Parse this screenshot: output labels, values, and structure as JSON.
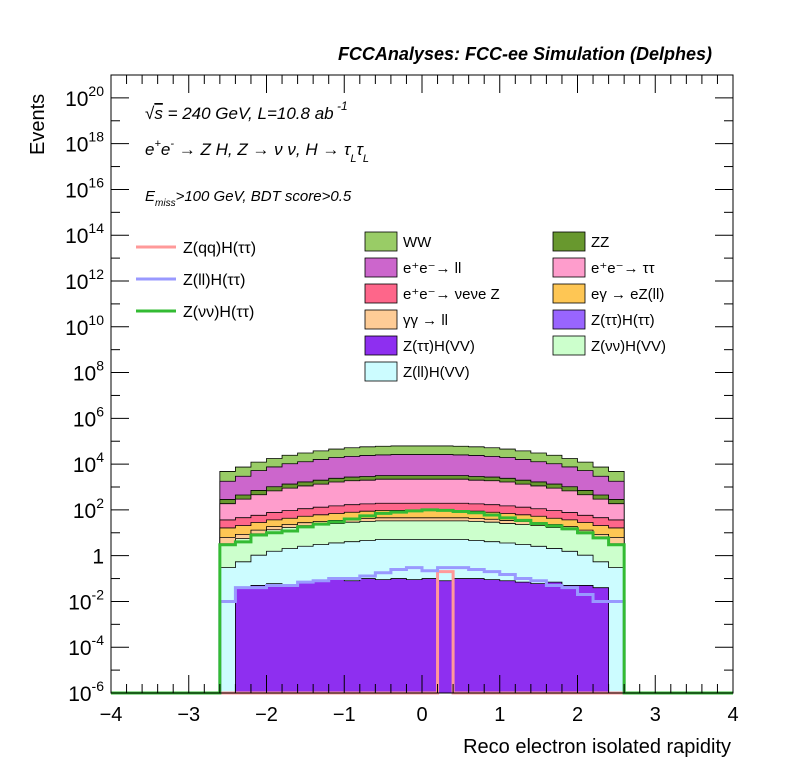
{
  "chart_data": {
    "type": "histogram-stacked",
    "title": "FCCAnalyses: FCC-ee Simulation (Delphes)",
    "xlabel": "Reco electron isolated rapidity",
    "ylabel": "Events",
    "xlim": [
      -4,
      4
    ],
    "ylim": [
      1e-06,
      1e+21
    ],
    "log_y": true,
    "x_ticks": [
      "−4",
      "−3",
      "−2",
      "−1",
      "0",
      "1",
      "2",
      "3",
      "4"
    ],
    "y_ticks": [
      {
        "base": "10",
        "exp": "20"
      },
      {
        "base": "10",
        "exp": "18"
      },
      {
        "base": "10",
        "exp": "16"
      },
      {
        "base": "10",
        "exp": "14"
      },
      {
        "base": "10",
        "exp": "12"
      },
      {
        "base": "10",
        "exp": "10"
      },
      {
        "base": "10",
        "exp": "8"
      },
      {
        "base": "10",
        "exp": "6"
      },
      {
        "base": "10",
        "exp": "4"
      },
      {
        "base": "10",
        "exp": "2"
      },
      {
        "base": "1",
        "exp": ""
      },
      {
        "base": "10",
        "exp": "-2"
      },
      {
        "base": "10",
        "exp": "-4"
      },
      {
        "base": "10",
        "exp": "-6"
      }
    ],
    "annotations": [
      "√s = 240 GeV, L=10.8 ab⁻¹",
      "e⁺e⁻ → Z H, Z → νν, H → τLτL",
      "Emiss>100 GeV, BDT score>0.5"
    ],
    "bin_edges": [
      -2.6,
      -2.4,
      -2.2,
      -2.0,
      -1.8,
      -1.6,
      -1.4,
      -1.2,
      -1.0,
      -0.8,
      -0.6,
      -0.4,
      -0.2,
      0.0,
      0.2,
      0.4,
      0.6,
      0.8,
      1.0,
      1.2,
      1.4,
      1.6,
      1.8,
      2.0,
      2.2,
      2.4,
      2.6
    ],
    "stacked_series": [
      {
        "name": "Z(ττ)H(VV)",
        "color": "#8e2ff0",
        "values": [
          0,
          0.04,
          0.05,
          0.06,
          0.05,
          0.07,
          0.08,
          0.09,
          0.08,
          0.1,
          0.09,
          0.1,
          0.09,
          0.1,
          0.08,
          0.1,
          0.1,
          0.09,
          0.08,
          0.07,
          0.06,
          0.07,
          0.05,
          0.05,
          0.04,
          0
        ]
      },
      {
        "name": "Z(ll)H(VV)",
        "color": "#ccfcff",
        "values": [
          0.3,
          0.5,
          1,
          1.5,
          2,
          2.5,
          3,
          3.5,
          4,
          4.5,
          5,
          5,
          5,
          5,
          5,
          5,
          4.5,
          4,
          3.5,
          3,
          2.5,
          2,
          1.5,
          1,
          0.5,
          0.3
        ]
      },
      {
        "name": "Z(νν)H(VV)",
        "color": "#ccffcc",
        "values": [
          3,
          5,
          8,
          12,
          15,
          18,
          20,
          22,
          25,
          27,
          28,
          28,
          28,
          28,
          28,
          28,
          27,
          25,
          22,
          20,
          18,
          15,
          12,
          8,
          5,
          3
        ]
      },
      {
        "name": "γγ → ll",
        "color": "#fecc96",
        "values": [
          3,
          3,
          4,
          5,
          6,
          7,
          8,
          9,
          10,
          11,
          12,
          12,
          12,
          12,
          12,
          12,
          11,
          10,
          9,
          8,
          7,
          6,
          5,
          4,
          3,
          3
        ]
      },
      {
        "name": "eγ → eZ(ll)",
        "color": "#fec654",
        "values": [
          10,
          12,
          15,
          18,
          20,
          25,
          30,
          35,
          40,
          45,
          50,
          50,
          50,
          50,
          50,
          50,
          45,
          40,
          35,
          30,
          25,
          20,
          18,
          15,
          12,
          10
        ]
      },
      {
        "name": "e⁺e⁻ → νeνe Z",
        "color": "#fe668a",
        "values": [
          20,
          25,
          30,
          40,
          50,
          60,
          70,
          80,
          90,
          95,
          100,
          100,
          100,
          100,
          100,
          100,
          95,
          90,
          80,
          70,
          60,
          50,
          40,
          30,
          25,
          20
        ]
      },
      {
        "name": "e⁺e⁻ → ττ",
        "color": "#fe9dcc",
        "values": [
          150,
          250,
          400,
          600,
          800,
          1000,
          1200,
          1500,
          1700,
          1800,
          2000,
          2000,
          2000,
          2000,
          2000,
          2000,
          1800,
          1700,
          1500,
          1200,
          1000,
          800,
          600,
          400,
          250,
          150
        ]
      },
      {
        "name": "ZZ",
        "color": "#68982e",
        "values": [
          100,
          150,
          250,
          350,
          450,
          550,
          650,
          750,
          850,
          900,
          950,
          950,
          950,
          950,
          950,
          950,
          900,
          850,
          750,
          650,
          550,
          450,
          350,
          250,
          150,
          100
        ]
      },
      {
        "name": "e⁺e⁻ → ll",
        "color": "#cc66cc",
        "values": [
          1500,
          2500,
          4500,
          6500,
          9000,
          11000,
          14000,
          17000,
          19000,
          21000,
          22000,
          23000,
          23000,
          23000,
          23000,
          22000,
          21000,
          19000,
          17000,
          14000,
          11000,
          9000,
          6500,
          4500,
          2500,
          1500
        ]
      },
      {
        "name": "WW",
        "color": "#99cc66",
        "values": [
          3000,
          4500,
          7000,
          10000,
          14000,
          18000,
          22000,
          26000,
          30000,
          33000,
          35000,
          36000,
          36000,
          36000,
          36000,
          35000,
          33000,
          30000,
          26000,
          22000,
          18000,
          14000,
          10000,
          7000,
          4500,
          3000
        ]
      }
    ],
    "stacked_series_legend_only": [
      {
        "name": "Z(ττ)H(ττ)",
        "color": "#9965fe"
      }
    ],
    "line_series": [
      {
        "name": "Z(qq)H(ττ)",
        "color": "#ff9999",
        "values": [
          0,
          0,
          0,
          0,
          0,
          0,
          0,
          0,
          0,
          0,
          0,
          0,
          0,
          0,
          0.2,
          0,
          0,
          0,
          0,
          0,
          0,
          0,
          0,
          0,
          0,
          0
        ]
      },
      {
        "name": "Z(ll)H(ττ)",
        "color": "#9999ff",
        "values": [
          0.01,
          0.04,
          0.04,
          0.05,
          0.05,
          0.07,
          0.08,
          0.1,
          0.1,
          0.13,
          0.18,
          0.25,
          0.3,
          0.22,
          0.3,
          0.3,
          0.25,
          0.2,
          0.15,
          0.1,
          0.08,
          0.05,
          0.04,
          0.02,
          0.01,
          0.01
        ]
      },
      {
        "name": "Z(νν)H(ττ)",
        "color": "#33bb33",
        "values": [
          3,
          4,
          8,
          10,
          12,
          18,
          24,
          30,
          40,
          55,
          70,
          80,
          90,
          100,
          95,
          85,
          75,
          60,
          45,
          35,
          25,
          20,
          15,
          10,
          6,
          3
        ]
      }
    ],
    "legend_left": [
      {
        "label": "Z(qq)H(ττ)",
        "color": "#ff9999",
        "kind": "line"
      },
      {
        "label": "Z(ll)H(ττ)",
        "color": "#9999ff",
        "kind": "line"
      },
      {
        "label": "Z(νν)H(ττ)",
        "color": "#33bb33",
        "kind": "line"
      }
    ],
    "legend_fill": [
      {
        "label": "WW",
        "color": "#99cc66"
      },
      {
        "label": "ZZ",
        "color": "#68982e"
      },
      {
        "label": "e⁺e⁻→ ll",
        "color": "#cc66cc"
      },
      {
        "label": "e⁺e⁻→ ττ",
        "color": "#fe9dcc"
      },
      {
        "label": "e⁺e⁻→ νeνe Z",
        "color": "#fe668a"
      },
      {
        "label": "eγ → eZ(ll)",
        "color": "#fec654"
      },
      {
        "label": "γγ → ll",
        "color": "#fecc96"
      },
      {
        "label": "Z(ττ)H(ττ)",
        "color": "#9965fe"
      },
      {
        "label": "Z(ττ)H(VV)",
        "color": "#8e2ff0"
      },
      {
        "label": "Z(νν)H(VV)",
        "color": "#ccffcc"
      },
      {
        "label": "Z(ll)H(VV)",
        "color": "#ccfcff"
      }
    ]
  }
}
